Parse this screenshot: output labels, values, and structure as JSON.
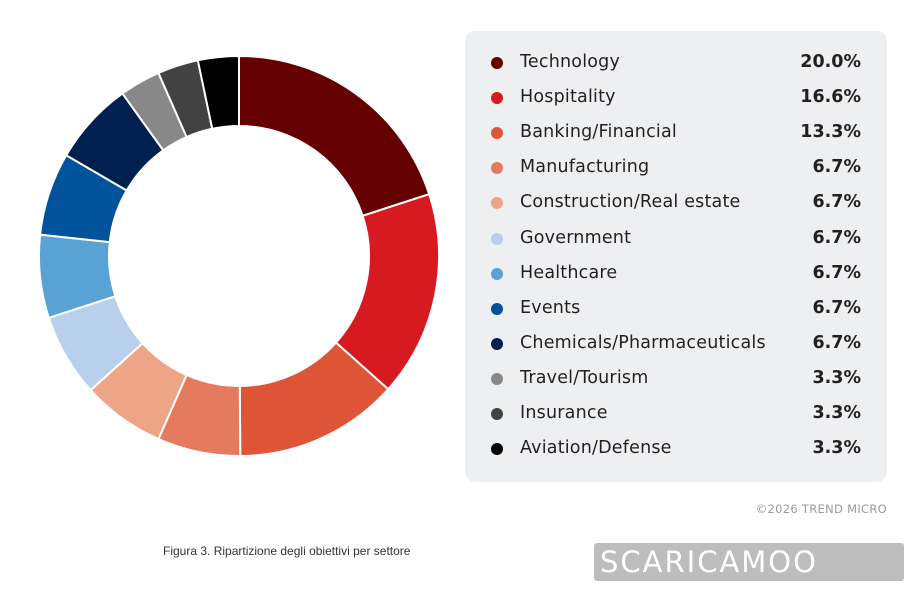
{
  "chart_data": {
    "type": "pie",
    "style": "donut",
    "categories": [
      "Technology",
      "Hospitality",
      "Banking/Financial",
      "Manufacturing",
      "Construction/Real estate",
      "Government",
      "Healthcare",
      "Events",
      "Chemicals/Pharmaceuticals",
      "Travel/Tourism",
      "Insurance",
      "Aviation/Defense"
    ],
    "values": [
      20.0,
      16.6,
      13.3,
      6.7,
      6.7,
      6.7,
      6.7,
      6.7,
      6.7,
      3.3,
      3.3,
      3.3
    ],
    "labels": [
      "20.0%",
      "16.6%",
      "13.3%",
      "6.7%",
      "6.7%",
      "6.7%",
      "6.7%",
      "6.7%",
      "6.7%",
      "3.3%",
      "3.3%",
      "3.3%"
    ],
    "colors": [
      "#650000",
      "#d71920",
      "#de5436",
      "#e67a5f",
      "#eda487",
      "#b8d0ec",
      "#58a2d6",
      "#00539b",
      "#002050",
      "#888888",
      "#424242",
      "#000000"
    ],
    "legend": "right"
  },
  "footer": {
    "copyright": "©2026 TREND MICRO",
    "caption": "Figura 3. Ripartizione degli obiettivi per settore",
    "watermark": "SCARICAMOO"
  }
}
